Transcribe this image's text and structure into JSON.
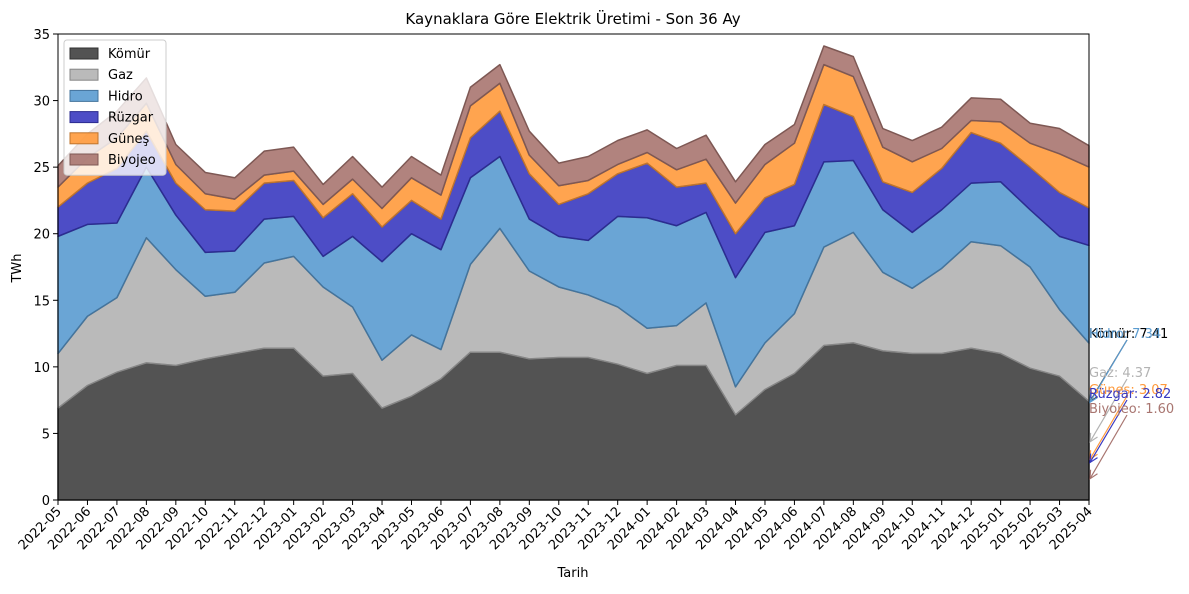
{
  "chart_data": {
    "type": "area",
    "stacked": true,
    "title": "Kaynaklara Göre Elektrik Üretimi - Son 36 Ay",
    "xlabel": "Tarih",
    "ylabel": "TWh",
    "ylim": [
      0,
      35
    ],
    "yticks": [
      0,
      5,
      10,
      15,
      20,
      25,
      30,
      35
    ],
    "legend_position": "top-left",
    "grid": false,
    "x": [
      "2022-05",
      "2022-06",
      "2022-07",
      "2022-08",
      "2022-09",
      "2022-10",
      "2022-11",
      "2022-12",
      "2023-01",
      "2023-02",
      "2023-03",
      "2023-04",
      "2023-05",
      "2023-06",
      "2023-07",
      "2023-08",
      "2023-09",
      "2023-10",
      "2023-11",
      "2023-12",
      "2024-01",
      "2024-02",
      "2024-03",
      "2024-04",
      "2024-05",
      "2024-06",
      "2024-07",
      "2024-08",
      "2024-09",
      "2024-10",
      "2024-11",
      "2024-12",
      "2025-01",
      "2025-02",
      "2025-03",
      "2025-04"
    ],
    "series": [
      {
        "name": "Kömür",
        "color": "#404040",
        "values": [
          6.9,
          8.6,
          9.6,
          10.3,
          10.1,
          10.6,
          11.0,
          11.4,
          11.4,
          9.3,
          9.5,
          6.9,
          7.8,
          9.1,
          11.1,
          11.1,
          10.6,
          10.7,
          10.7,
          10.2,
          9.5,
          10.1,
          10.1,
          6.4,
          8.3,
          9.5,
          11.6,
          11.8,
          11.2,
          11.0,
          11.0,
          11.4,
          11.0,
          9.9,
          9.3,
          7.41
        ]
      },
      {
        "name": "Gaz",
        "color": "#b3b3b3",
        "values": [
          4.1,
          5.2,
          5.6,
          9.4,
          7.2,
          4.7,
          4.6,
          6.4,
          6.9,
          6.7,
          5.0,
          3.6,
          4.6,
          2.2,
          6.6,
          9.3,
          6.6,
          5.3,
          4.7,
          4.3,
          3.4,
          3.0,
          4.7,
          2.1,
          3.5,
          4.5,
          7.4,
          8.3,
          5.9,
          4.9,
          6.4,
          8.0,
          8.1,
          7.6,
          5.0,
          4.37
        ]
      },
      {
        "name": "Hidro",
        "color": "#5a9bd0",
        "values": [
          8.8,
          6.9,
          5.6,
          5.3,
          4.1,
          3.3,
          3.1,
          3.3,
          3.0,
          2.3,
          5.3,
          7.4,
          7.6,
          7.5,
          6.5,
          5.4,
          3.9,
          3.8,
          4.1,
          6.8,
          8.3,
          7.5,
          6.8,
          8.2,
          8.3,
          6.6,
          6.4,
          5.4,
          4.7,
          4.2,
          4.4,
          4.4,
          4.8,
          4.3,
          5.5,
          7.34
        ]
      },
      {
        "name": "Rüzgar",
        "color": "#3a3ac0",
        "values": [
          2.2,
          3.1,
          4.1,
          2.7,
          2.4,
          3.2,
          3.0,
          2.7,
          2.7,
          2.9,
          3.2,
          2.6,
          2.5,
          2.3,
          3.0,
          3.4,
          3.4,
          2.4,
          3.5,
          3.2,
          4.1,
          2.9,
          2.2,
          3.3,
          2.6,
          3.1,
          4.3,
          3.3,
          2.1,
          3.0,
          3.1,
          3.8,
          2.9,
          3.2,
          3.3,
          2.82
        ]
      },
      {
        "name": "Güneş",
        "color": "#ff9a3c",
        "values": [
          1.5,
          1.9,
          2.3,
          2.1,
          1.4,
          1.2,
          0.9,
          0.6,
          0.7,
          1.0,
          1.1,
          1.4,
          1.7,
          1.8,
          2.4,
          2.1,
          1.4,
          1.4,
          1.0,
          0.7,
          0.8,
          1.3,
          1.8,
          2.3,
          2.5,
          3.1,
          3.0,
          3.0,
          2.6,
          2.3,
          1.5,
          0.9,
          1.6,
          1.8,
          2.9,
          3.07
        ]
      },
      {
        "name": "Biyojeo",
        "color": "#a87570",
        "values": [
          1.6,
          1.8,
          2.0,
          1.9,
          1.5,
          1.6,
          1.6,
          1.8,
          1.8,
          1.5,
          1.7,
          1.6,
          1.6,
          1.5,
          1.4,
          1.4,
          1.8,
          1.7,
          1.8,
          1.8,
          1.7,
          1.6,
          1.8,
          1.6,
          1.5,
          1.4,
          1.4,
          1.5,
          1.4,
          1.6,
          1.6,
          1.7,
          1.7,
          1.5,
          1.9,
          1.6
        ]
      }
    ],
    "annotations": [
      {
        "series": "Kömür",
        "text": "Kömür: 7.41"
      },
      {
        "series": "Hidro",
        "text": "Hidro: 7.34"
      },
      {
        "series": "Gaz",
        "text": "Gaz: 4.37"
      },
      {
        "series": "Güneş",
        "text": "Güneş: 3.07"
      },
      {
        "series": "Rüzgar",
        "text": "Rüzgar: 2.82"
      },
      {
        "series": "Biyojeo",
        "text": "Biyojeo: 1.60"
      }
    ]
  }
}
